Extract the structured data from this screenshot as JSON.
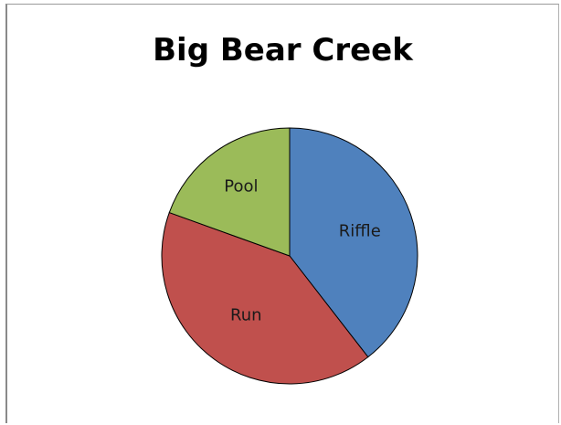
{
  "chart_data": {
    "type": "pie",
    "title": "Big Bear Creek",
    "categories": [
      "Riffle",
      "Run",
      "Pool"
    ],
    "values": [
      39.5,
      41,
      19.5
    ],
    "colors": [
      "#4f81bd",
      "#c0504d",
      "#9bbb59"
    ],
    "start": "top",
    "direction": "clockwise",
    "legend": "none",
    "labels": "inside"
  }
}
